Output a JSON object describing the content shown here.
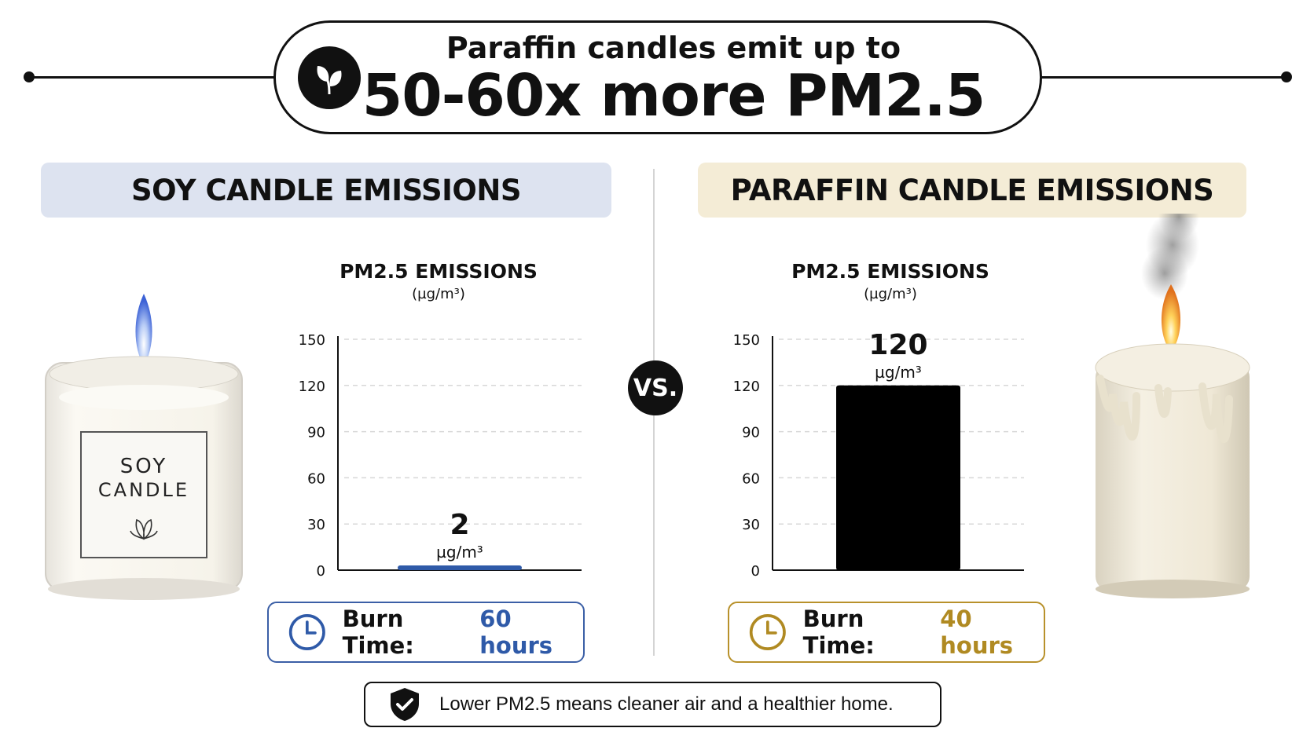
{
  "headline": {
    "line1": "Paraffin candles emit up to",
    "line2": "50-60x more PM2.5",
    "icon": "leaf-icon"
  },
  "soy": {
    "section_title": "SOY CANDLE EMISSIONS",
    "jar_label_line1": "SOY",
    "jar_label_line2": "CANDLE",
    "burn_label": "Burn Time:",
    "burn_value": "60 hours",
    "accent": "#2f5aa8"
  },
  "paraffin": {
    "section_title": "PARAFFIN CANDLE EMISSIONS",
    "burn_label": "Burn Time:",
    "burn_value": "40 hours",
    "accent": "#b08a22"
  },
  "vs_label": "VS.",
  "footer": {
    "text": "Lower PM2.5 means cleaner air and a healthier home.",
    "icon": "shield-check-icon"
  },
  "chart_data": [
    {
      "type": "bar",
      "title": "PM2.5 EMISSIONS",
      "ylabel": "(µg/m³)",
      "categories": [
        "Soy"
      ],
      "values": [
        2
      ],
      "data_label": "2",
      "data_unit": "µg/m³",
      "ylim": [
        0,
        150
      ],
      "yticks": [
        0,
        30,
        60,
        90,
        120,
        150
      ],
      "grid": true,
      "bar_color": "#2f5aa8"
    },
    {
      "type": "bar",
      "title": "PM2.5 EMISSIONS",
      "ylabel": "(µg/m³)",
      "categories": [
        "Paraffin"
      ],
      "values": [
        120
      ],
      "data_label": "120",
      "data_unit": "µg/m³",
      "ylim": [
        0,
        150
      ],
      "yticks": [
        0,
        30,
        60,
        90,
        120,
        150
      ],
      "grid": true,
      "bar_color": "#000000"
    }
  ]
}
